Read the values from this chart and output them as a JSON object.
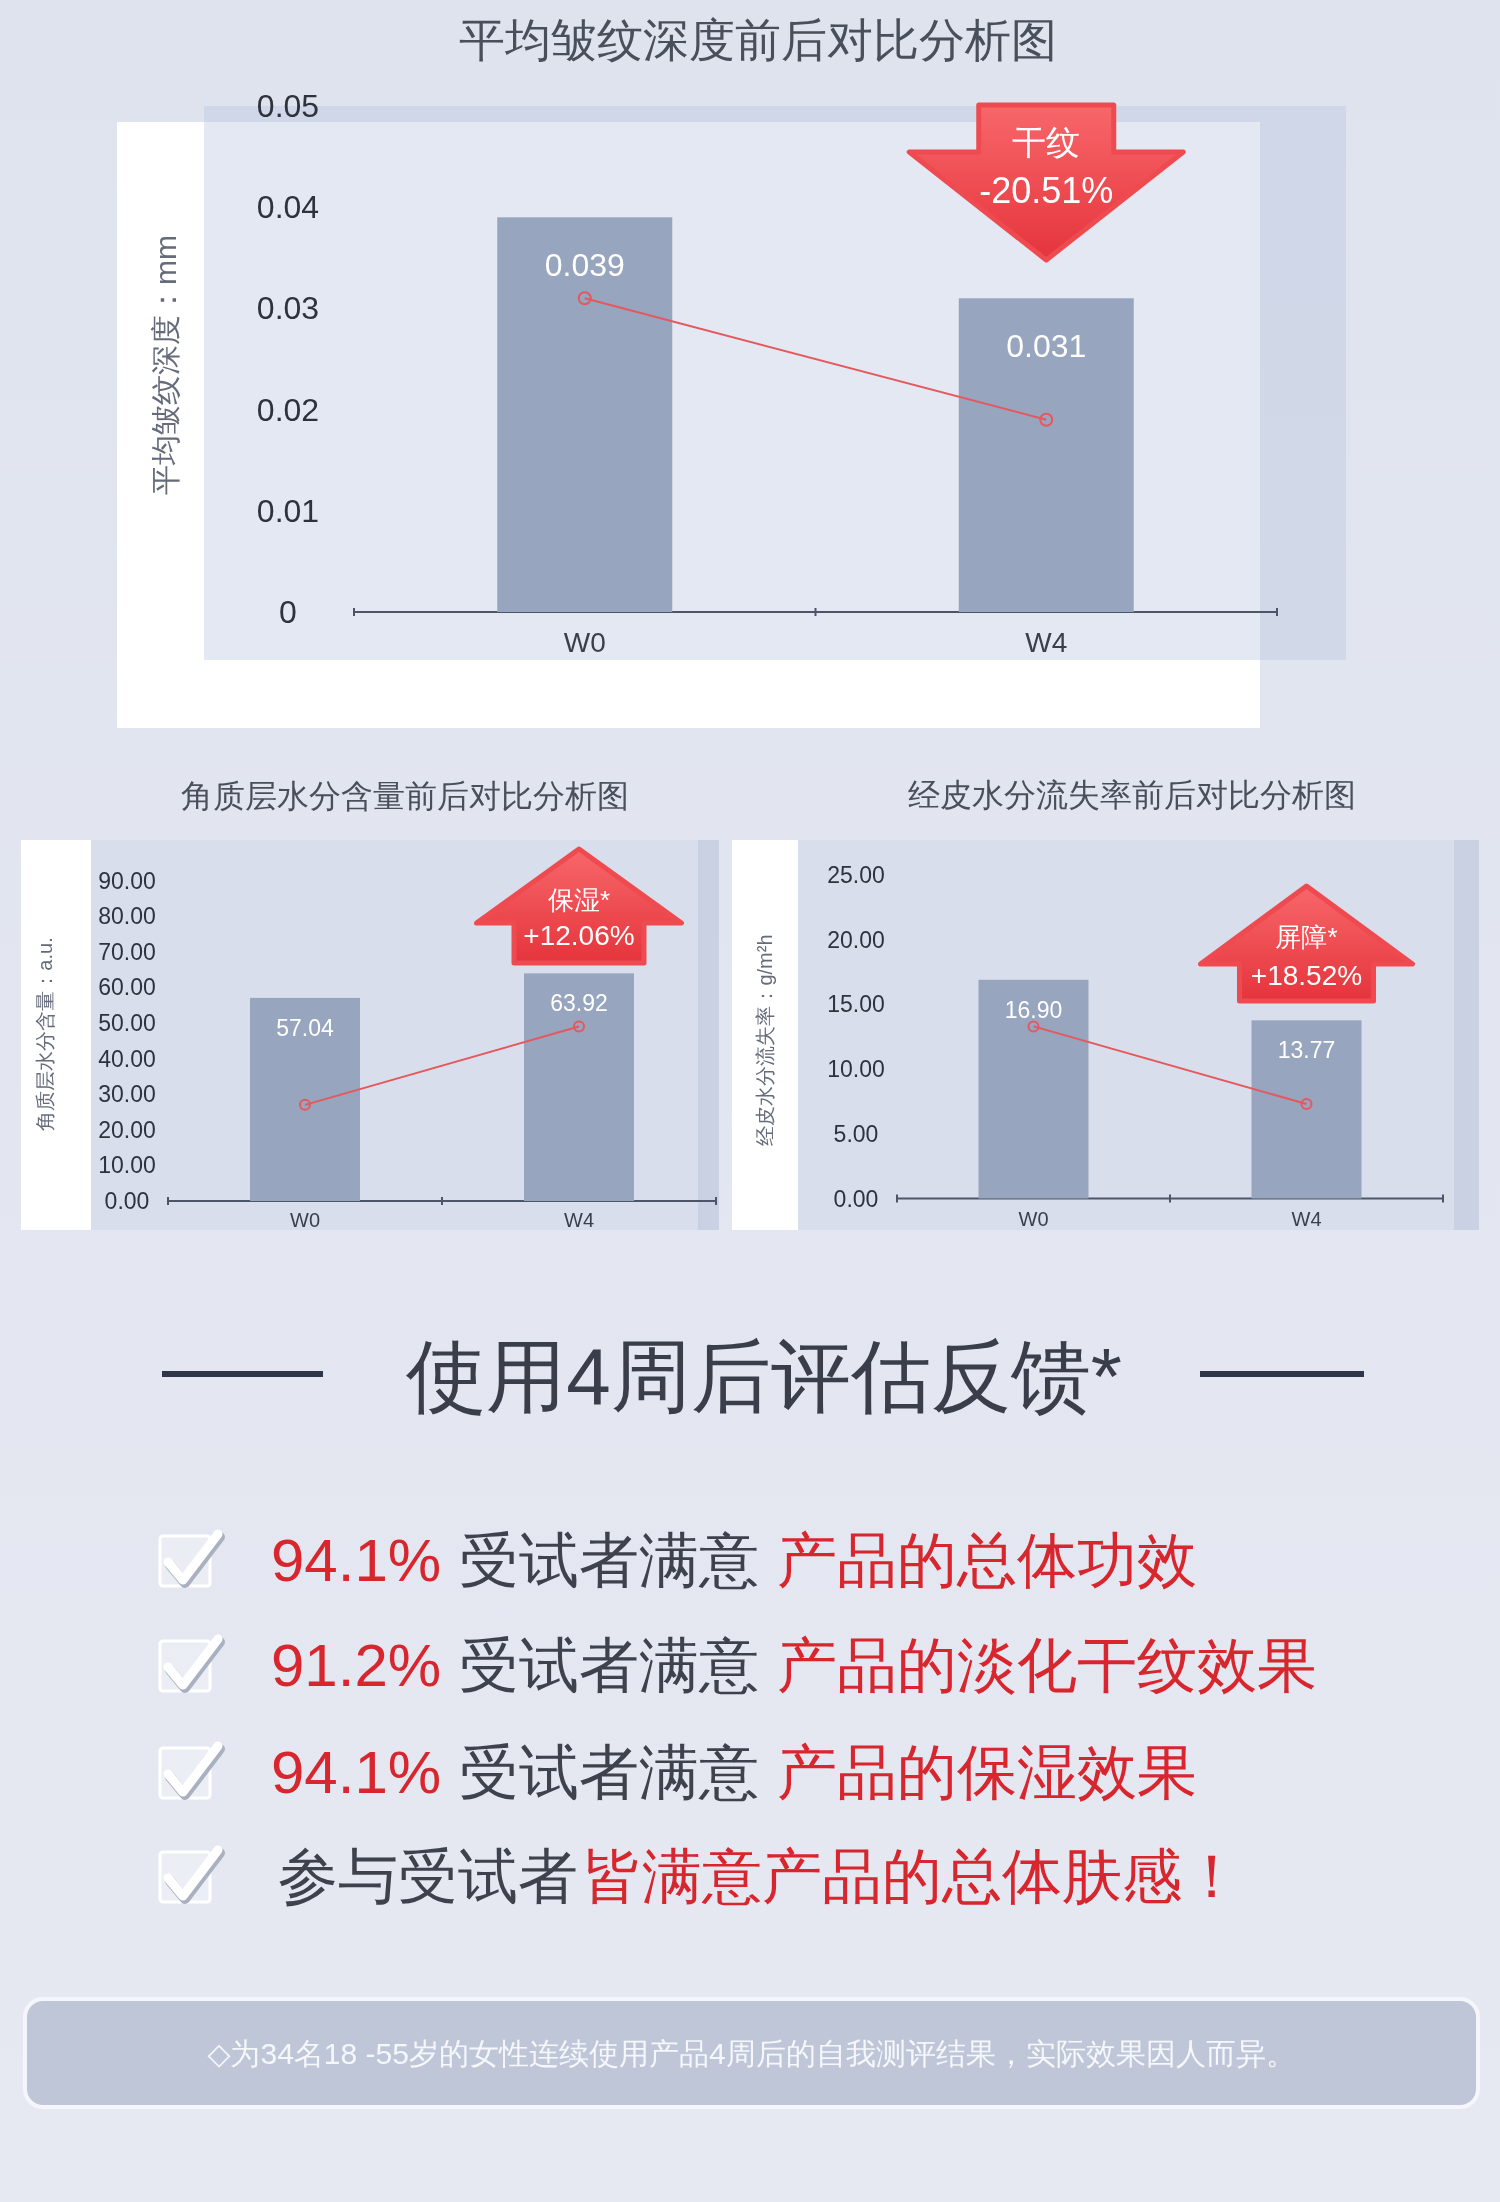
{
  "chart_data": [
    {
      "type": "bar",
      "title": "平均皱纹深度前后对比分析图",
      "ylabel": "平均皱纹深度：mm",
      "categories": [
        "W0",
        "W4"
      ],
      "series": [
        {
          "type": "bar",
          "color": "#97a5bf",
          "values": [
            0.039,
            0.031
          ],
          "value_labels": [
            "0.039",
            "0.031"
          ]
        },
        {
          "type": "line",
          "color": "#e5585d",
          "values": [
            0.031,
            0.019
          ]
        }
      ],
      "ylim": [
        0,
        0.05
      ],
      "yticks": [
        0,
        0.01,
        0.02,
        0.03,
        0.04,
        0.05
      ],
      "marker": "circle",
      "annotations": [
        "干纹",
        "-20.51%"
      ]
    },
    {
      "type": "bar",
      "title": "角质层水分含量前后对比分析图",
      "ylabel": "角质层水分含量：a.u.",
      "categories": [
        "W0",
        "W4"
      ],
      "series": [
        {
          "type": "bar",
          "color": "#97a5bf",
          "values": [
            57.04,
            63.92
          ],
          "value_labels": [
            "57.04",
            "63.92"
          ]
        },
        {
          "type": "line",
          "color": "#e5585d",
          "values": [
            27,
            49
          ]
        }
      ],
      "ylim": [
        0,
        90
      ],
      "yticks": [
        {
          "value": 0,
          "label": "0.00"
        },
        {
          "value": 10,
          "label": "10.00"
        },
        {
          "value": 20,
          "label": "20.00"
        },
        {
          "value": 30,
          "label": "30.00"
        },
        {
          "value": 40,
          "label": "40.00"
        },
        {
          "value": 50,
          "label": "50.00"
        },
        {
          "value": 60,
          "label": "60.00"
        },
        {
          "value": 70,
          "label": "70.00"
        },
        {
          "value": 80,
          "label": "80.00"
        },
        {
          "value": 90,
          "label": "90.00"
        }
      ],
      "marker": "circle",
      "annotations": [
        "保湿*",
        "+12.06%"
      ]
    },
    {
      "type": "bar",
      "title": "经皮水分流失率前后对比分析图",
      "ylabel": "经皮水分流失率：g/m²h",
      "categories": [
        "W0",
        "W4"
      ],
      "series": [
        {
          "type": "bar",
          "color": "#97a5bf",
          "values": [
            16.9,
            13.77
          ],
          "value_labels": [
            "16.90",
            "13.77"
          ]
        },
        {
          "type": "line",
          "color": "#e5585d",
          "values": [
            13.3,
            7.3
          ]
        }
      ],
      "ylim": [
        0,
        25
      ],
      "yticks": [
        {
          "value": 0,
          "label": "0.00"
        },
        {
          "value": 5,
          "label": "5.00"
        },
        {
          "value": 10,
          "label": "10.00"
        },
        {
          "value": 15,
          "label": "15.00"
        },
        {
          "value": 20,
          "label": "20.00"
        },
        {
          "value": 25,
          "label": "25.00"
        }
      ],
      "marker": "circle",
      "annotations": [
        "屏障*",
        "+18.52%"
      ]
    },
    {
      "type": "other",
      "title": "使用4周后评估反馈*",
      "annotations": [
        "94.1%",
        "受试者满意",
        "产品的总体功效",
        "91.2%",
        "受试者满意",
        "产品的淡化干纹效果",
        "94.1%",
        "受试者满意",
        "产品的保湿效果",
        "参与受试者",
        "皆满意产品的总体肤感！",
        "◇为34名18 -55岁的女性连续使用产品4周后的自我测评结果，实际效果因人而异。"
      ]
    }
  ]
}
